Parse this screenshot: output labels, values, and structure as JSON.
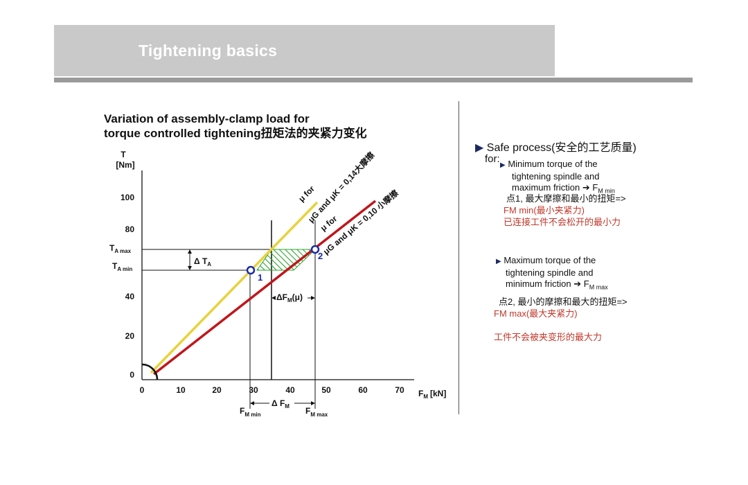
{
  "header": {
    "title": "Tightening basics"
  },
  "diagram": {
    "title_line1": "Variation of assembly-clamp load for",
    "title_line2": "torque controlled tightening扭矩法的夹紧力变化",
    "y_axis_label_1": "T",
    "y_axis_label_2": "[Nm]",
    "y_ticks": [
      "100",
      "80",
      "40",
      "20",
      "0"
    ],
    "y_markers": {
      "t_a_max": "T",
      "t_a_max_sub": "A max",
      "t_a_min": "T",
      "t_a_min_sub": "A min"
    },
    "x_axis_label": "F",
    "x_axis_label_sub": "M",
    "x_axis_unit": "[kN]",
    "x_ticks": [
      "0",
      "10",
      "20",
      "30",
      "40",
      "50",
      "60",
      "70"
    ],
    "x_markers": {
      "fm_min": "F",
      "fm_min_sub": "M min",
      "fm_max": "F",
      "fm_max_sub": "M max",
      "delta_fm": "Δ F",
      "delta_fm_sub": "M"
    },
    "delta_ta": "Δ T",
    "delta_ta_sub": "A",
    "delta_fm_mu": "ΔF",
    "delta_fm_mu_sub": "M",
    "delta_fm_mu_suffix": "(μ)",
    "point1": "1",
    "point2": "2",
    "line_high": {
      "prefix": "μ for",
      "text": "μG and μK = 0,14大摩擦",
      "color": "#e8d23a"
    },
    "line_low": {
      "prefix": "μ for",
      "text": "μG and μK = 0,10 小摩擦",
      "color": "#c0161c"
    },
    "hatch_color": "#2ea32e",
    "point_color": "#1a2aa8"
  },
  "notes": {
    "safe_process": "Safe process(安全的工艺质量)",
    "for": "for:",
    "item1_en_1": "Minimum torque of the",
    "item1_en_2": "tightening spindle and",
    "item1_en_3": "maximum friction",
    "item1_arrow": "➔ F",
    "item1_sub": "M min",
    "item1_cn": "点1, 最大摩擦和最小的扭矩=>",
    "item1_fm": "FM min(最小夹紧力)",
    "item1_cn2": "已连接工件不会松开的最小力",
    "item2_en_1": "Maximum torque of the",
    "item2_en_2": "tightening spindle and",
    "item2_en_3": "minimum friction",
    "item2_arrow": "➔ F",
    "item2_sub": "M max",
    "item2_cn": "点2, 最小的摩擦和最大的扭矩=>",
    "item2_fm": "FM max(最大夹紧力)",
    "item2_cn2": "工件不会被夹变形的最大力",
    "colors": {
      "red": "#c0392b",
      "bullet": "#1b2a5e"
    }
  }
}
